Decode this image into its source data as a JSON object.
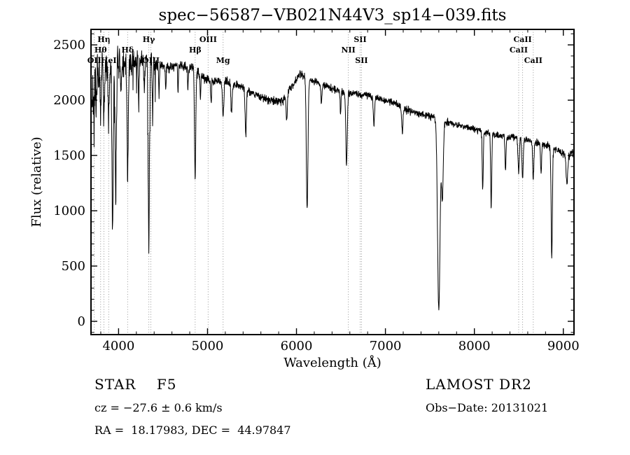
{
  "chart_data": {
    "type": "line",
    "title": "spec−56587−VB021N44V3_sp14−039.fits",
    "xlabel": "Wavelength (Å)",
    "ylabel": "Flux (relative)",
    "xlim": [
      3690,
      9120
    ],
    "ylim": [
      -120,
      2640
    ],
    "xticks": [
      4000,
      5000,
      6000,
      7000,
      8000,
      9000
    ],
    "yticks": [
      0,
      500,
      1000,
      1500,
      2000,
      2500
    ],
    "x_minor_step": 200,
    "y_minor_step": 100,
    "grid": false,
    "legend": "none",
    "line_color": "#000000",
    "marker_line_color": "#979797",
    "spectral_lines": [
      {
        "label": "OII",
        "wavelength": 3727,
        "row": 3
      },
      {
        "label": "Hθ",
        "wavelength": 3798,
        "row": 2
      },
      {
        "label": "Hη",
        "wavelength": 3835,
        "row": 1
      },
      {
        "label": "HeI",
        "wavelength": 3889,
        "row": 3
      },
      {
        "label": "Hδ",
        "wavelength": 4102,
        "row": 2
      },
      {
        "label": "Hγ",
        "wavelength": 4340,
        "row": 1
      },
      {
        "label": "OIII",
        "wavelength": 4363,
        "row": 3
      },
      {
        "label": "Hβ",
        "wavelength": 4861,
        "row": 2
      },
      {
        "label": "OIII",
        "wavelength": 5007,
        "row": 1
      },
      {
        "label": "Mg",
        "wavelength": 5175,
        "row": 3
      },
      {
        "label": "NII",
        "wavelength": 6583,
        "row": 2
      },
      {
        "label": "SII",
        "wavelength": 6716,
        "row": 1
      },
      {
        "label": "SII",
        "wavelength": 6731,
        "row": 3
      },
      {
        "label": "CaII",
        "wavelength": 8498,
        "row": 2
      },
      {
        "label": "CaII",
        "wavelength": 8542,
        "row": 1
      },
      {
        "label": "CaII",
        "wavelength": 8662,
        "row": 3
      }
    ],
    "continuum": [
      [
        3690,
        1950
      ],
      [
        3730,
        2200
      ],
      [
        3780,
        2300
      ],
      [
        3850,
        2330
      ],
      [
        3920,
        2290
      ],
      [
        3990,
        2340
      ],
      [
        4060,
        2320
      ],
      [
        4160,
        2350
      ],
      [
        4260,
        2365
      ],
      [
        4360,
        2345
      ],
      [
        4460,
        2315
      ],
      [
        4560,
        2300
      ],
      [
        4660,
        2315
      ],
      [
        4760,
        2305
      ],
      [
        4870,
        2280
      ],
      [
        4960,
        2210
      ],
      [
        5060,
        2165
      ],
      [
        5160,
        2175
      ],
      [
        5260,
        2155
      ],
      [
        5360,
        2135
      ],
      [
        5460,
        2085
      ],
      [
        5560,
        2045
      ],
      [
        5660,
        2005
      ],
      [
        5760,
        1990
      ],
      [
        5860,
        2010
      ],
      [
        5960,
        2140
      ],
      [
        6040,
        2240
      ],
      [
        6140,
        2195
      ],
      [
        6240,
        2155
      ],
      [
        6340,
        2125
      ],
      [
        6440,
        2095
      ],
      [
        6560,
        2065
      ],
      [
        6660,
        2060
      ],
      [
        6760,
        2050
      ],
      [
        6860,
        2035
      ],
      [
        6960,
        2005
      ],
      [
        7060,
        1985
      ],
      [
        7160,
        1955
      ],
      [
        7260,
        1905
      ],
      [
        7360,
        1885
      ],
      [
        7460,
        1865
      ],
      [
        7560,
        1845
      ],
      [
        7660,
        1805
      ],
      [
        7760,
        1785
      ],
      [
        7860,
        1765
      ],
      [
        7960,
        1745
      ],
      [
        8060,
        1725
      ],
      [
        8160,
        1705
      ],
      [
        8260,
        1685
      ],
      [
        8360,
        1672
      ],
      [
        8460,
        1662
      ],
      [
        8560,
        1645
      ],
      [
        8660,
        1625
      ],
      [
        8760,
        1605
      ],
      [
        8860,
        1575
      ],
      [
        8960,
        1535
      ],
      [
        9060,
        1490
      ],
      [
        9120,
        1540
      ]
    ],
    "absorption_lines": [
      [
        3727,
        300,
        6
      ],
      [
        3750,
        400,
        5
      ],
      [
        3798,
        500,
        6
      ],
      [
        3835,
        560,
        6
      ],
      [
        3889,
        520,
        6
      ],
      [
        3933,
        1500,
        7
      ],
      [
        3968,
        1150,
        7
      ],
      [
        4026,
        320,
        5
      ],
      [
        4102,
        1000,
        7
      ],
      [
        4227,
        420,
        5
      ],
      [
        4290,
        300,
        5
      ],
      [
        4340,
        1650,
        7
      ],
      [
        4383,
        420,
        5
      ],
      [
        4455,
        260,
        4
      ],
      [
        4530,
        220,
        4
      ],
      [
        4668,
        240,
        4
      ],
      [
        4780,
        200,
        4
      ],
      [
        4861,
        1000,
        7
      ],
      [
        4920,
        220,
        5
      ],
      [
        5040,
        200,
        5
      ],
      [
        5175,
        320,
        8
      ],
      [
        5270,
        260,
        7
      ],
      [
        5430,
        420,
        7
      ],
      [
        5890,
        220,
        7
      ],
      [
        6120,
        1200,
        9
      ],
      [
        6280,
        180,
        6
      ],
      [
        6495,
        200,
        5
      ],
      [
        6563,
        650,
        8
      ],
      [
        6870,
        260,
        7
      ],
      [
        7190,
        220,
        8
      ],
      [
        7600,
        1730,
        14
      ],
      [
        7640,
        700,
        10
      ],
      [
        8094,
        520,
        6
      ],
      [
        8189,
        660,
        6
      ],
      [
        8350,
        300,
        6
      ],
      [
        8498,
        310,
        7
      ],
      [
        8542,
        360,
        7
      ],
      [
        8662,
        330,
        7
      ],
      [
        8750,
        260,
        6
      ],
      [
        8870,
        1000,
        7
      ],
      [
        9040,
        260,
        9
      ]
    ],
    "noise": {
      "seed": 7,
      "regions": [
        [
          3690,
          3800,
          200
        ],
        [
          3800,
          4060,
          150
        ],
        [
          4060,
          4460,
          95
        ],
        [
          4460,
          5060,
          50
        ],
        [
          5060,
          6000,
          38
        ],
        [
          6000,
          9120,
          32
        ]
      ],
      "down_spike": {
        "below": 4450,
        "prob": 0.06,
        "max": 350
      }
    },
    "sample_step": 2.5
  },
  "footer": {
    "class_label": "STAR    F5",
    "survey": "LAMOST DR2",
    "cz": "cz = −27.6 ± 0.6 km/s",
    "obs_date": "Obs−Date: 20131021",
    "radec": "RA =  18.17983, DEC =  44.97847"
  }
}
